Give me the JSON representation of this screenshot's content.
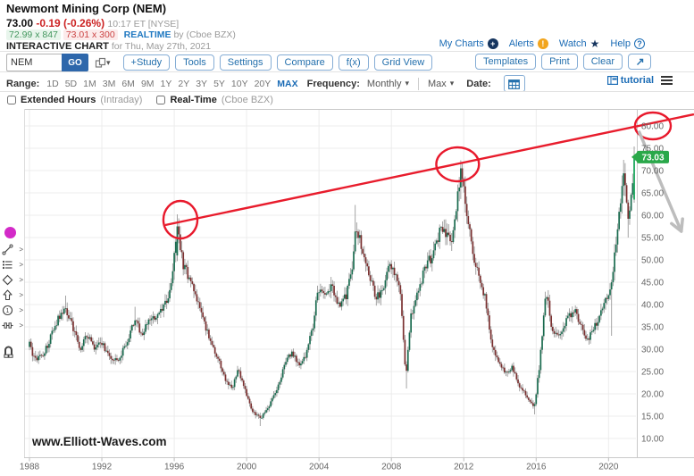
{
  "header": {
    "title": "Newmont Mining Corp (NEM)",
    "price": "73.00",
    "change": "-0.19 (-0.26%)",
    "time": "10:17 ET [NYSE]",
    "bid": "72.99 x 847",
    "ask": "73.01 x 300",
    "realtime_label": "REALTIME",
    "realtime_by": "by (Cboe BZX)",
    "chart_label": "INTERACTIVE CHART",
    "chart_date": "for Thu, May 27th, 2021",
    "links": {
      "my_charts": "My Charts",
      "alerts": "Alerts",
      "watch": "Watch",
      "help": "Help"
    }
  },
  "toolbar": {
    "symbol_value": "NEM",
    "go_label": "GO",
    "buttons": [
      "+Study",
      "Tools",
      "Settings",
      "Compare",
      "f(x)",
      "Grid View"
    ],
    "right_buttons": [
      "Templates",
      "Print",
      "Clear"
    ]
  },
  "range_bar": {
    "range_label": "Range:",
    "ranges": [
      "1D",
      "5D",
      "1M",
      "3M",
      "6M",
      "9M",
      "1Y",
      "2Y",
      "3Y",
      "5Y",
      "10Y",
      "20Y"
    ],
    "active_range": "MAX",
    "frequency_label": "Frequency:",
    "frequency_value": "Monthly",
    "max_value": "Max",
    "date_label": "Date:",
    "tutorial": "tutorial"
  },
  "options_bar": {
    "extended_hours": "Extended Hours",
    "extended_hours_suffix": "(Intraday)",
    "real_time": "Real-Time",
    "real_time_suffix": "(Cboe BZX)"
  },
  "watermark": "www.Elliott-Waves.com",
  "price_badge": "73.03",
  "colors": {
    "accent_blue": "#1a6bb5",
    "go_bg": "#2e67ab",
    "up_candle": "#1a6b4f",
    "down_candle": "#7a3030",
    "last_candle": "#12a355",
    "wick": "#9a9a9a",
    "grid": "#ececec",
    "axis": "#c9c9c9",
    "tick_text": "#666666",
    "trendline": "#e81c2c",
    "annotation_circle": "#e8192c",
    "arrow": "#bdbdbd",
    "badge_bg": "#2aa84a",
    "magenta_dot": "#d32ac8"
  },
  "chart_data": {
    "type": "candlestick",
    "symbol": "NEM",
    "frequency": "Monthly",
    "x_ticks": [
      1988,
      1992,
      1996,
      2000,
      2004,
      2008,
      2012,
      2016,
      2020
    ],
    "y_ticks": [
      80,
      75,
      70,
      65,
      60,
      55,
      50,
      45,
      40,
      35,
      30,
      25,
      20,
      15,
      10
    ],
    "ylim": [
      5.8,
      83.8
    ],
    "x_range": [
      1988,
      2024.7
    ],
    "last_price": 73.03,
    "price_anchors": [
      [
        1988.0,
        31
      ],
      [
        1988.3,
        27.5
      ],
      [
        1988.8,
        29
      ],
      [
        1989.2,
        33
      ],
      [
        1989.6,
        37
      ],
      [
        1990.0,
        39
      ],
      [
        1990.4,
        35
      ],
      [
        1990.8,
        30
      ],
      [
        1991.2,
        33.5
      ],
      [
        1991.6,
        30
      ],
      [
        1992.0,
        31.5
      ],
      [
        1992.4,
        28.5
      ],
      [
        1992.9,
        27
      ],
      [
        1993.4,
        32
      ],
      [
        1993.8,
        36.5
      ],
      [
        1994.2,
        33.5
      ],
      [
        1994.6,
        36.5
      ],
      [
        1995.0,
        37
      ],
      [
        1995.4,
        39
      ],
      [
        1995.8,
        43.5
      ],
      [
        1996.17,
        57.5
      ],
      [
        1996.5,
        49
      ],
      [
        1997.0,
        44.5
      ],
      [
        1997.4,
        39
      ],
      [
        1997.9,
        33
      ],
      [
        1998.3,
        29
      ],
      [
        1998.8,
        23.5
      ],
      [
        1999.2,
        21
      ],
      [
        1999.5,
        25.5
      ],
      [
        1999.9,
        21
      ],
      [
        2000.3,
        16
      ],
      [
        2000.75,
        14.5
      ],
      [
        2001.2,
        17
      ],
      [
        2001.7,
        21
      ],
      [
        2002.1,
        26.5
      ],
      [
        2002.5,
        29.5
      ],
      [
        2002.9,
        26
      ],
      [
        2003.3,
        29
      ],
      [
        2003.7,
        36
      ],
      [
        2003.95,
        44
      ],
      [
        2004.3,
        41.5
      ],
      [
        2004.7,
        44.5
      ],
      [
        2005.1,
        39.5
      ],
      [
        2005.5,
        42
      ],
      [
        2005.9,
        50
      ],
      [
        2006.04,
        58
      ],
      [
        2006.4,
        52
      ],
      [
        2006.8,
        45.5
      ],
      [
        2007.2,
        41.5
      ],
      [
        2007.6,
        44
      ],
      [
        2007.9,
        50
      ],
      [
        2008.2,
        47
      ],
      [
        2008.5,
        42
      ],
      [
        2008.8,
        24
      ],
      [
        2009.1,
        38
      ],
      [
        2009.5,
        43
      ],
      [
        2009.9,
        49
      ],
      [
        2010.3,
        51
      ],
      [
        2010.7,
        57
      ],
      [
        2011.0,
        56
      ],
      [
        2011.3,
        54
      ],
      [
        2011.6,
        62
      ],
      [
        2011.85,
        70
      ],
      [
        2012.2,
        60
      ],
      [
        2012.6,
        49
      ],
      [
        2012.9,
        46
      ],
      [
        2013.2,
        41
      ],
      [
        2013.5,
        32
      ],
      [
        2013.9,
        27
      ],
      [
        2014.3,
        24.5
      ],
      [
        2014.7,
        26
      ],
      [
        2015.1,
        21.5
      ],
      [
        2015.5,
        19.5
      ],
      [
        2015.9,
        17
      ],
      [
        2016.2,
        27
      ],
      [
        2016.55,
        43.5
      ],
      [
        2016.9,
        33.5
      ],
      [
        2017.3,
        33
      ],
      [
        2017.7,
        36.5
      ],
      [
        2018.1,
        39
      ],
      [
        2018.5,
        35
      ],
      [
        2018.8,
        31.5
      ],
      [
        2019.1,
        34
      ],
      [
        2019.5,
        37.5
      ],
      [
        2019.9,
        42
      ],
      [
        2020.2,
        45
      ],
      [
        2020.5,
        58
      ],
      [
        2020.85,
        70
      ],
      [
        2021.08,
        58
      ],
      [
        2021.25,
        63.5
      ],
      [
        2021.42,
        73.03
      ]
    ],
    "key_points": [
      {
        "t": 1990.0,
        "h": 42
      },
      {
        "t": 1993.8,
        "h": 39.5
      },
      {
        "t": 1996.17,
        "o": 51,
        "c": 57.5,
        "h": 60.2
      },
      {
        "t": 2000.75,
        "l": 12.8
      },
      {
        "t": 2006.04,
        "h": 62.3
      },
      {
        "t": 2008.8,
        "l": 21.2
      },
      {
        "t": 2011.85,
        "h": 72.3,
        "c": 70.5
      },
      {
        "t": 2015.9,
        "l": 15.4
      },
      {
        "t": 2020.2,
        "l": 33
      },
      {
        "t": 2020.85,
        "h": 72.4
      },
      {
        "t": 2021.08,
        "l": 55
      },
      {
        "t": 2021.42,
        "o": 63.5,
        "h": 75.4,
        "l": 62.8,
        "c": 73.03
      }
    ],
    "annotations": {
      "trendline": {
        "x1_year": 1995.5,
        "p1": 57.8,
        "x2_year": 2024.72,
        "p2": 82.6
      },
      "circles": [
        {
          "year": 1996.34,
          "price": 59.0,
          "rx_years": 0.94,
          "ry_price": 4.2
        },
        {
          "year": 2011.66,
          "price": 71.4,
          "rx_years": 1.18,
          "ry_price": 3.8
        },
        {
          "year": 2022.45,
          "price": 80.0,
          "rx_years": 0.99,
          "ry_price": 3.0
        }
      ],
      "arrow": {
        "x1_year": 2021.7,
        "p1": 78.6,
        "x2_year": 2024.02,
        "p2": 56.4
      }
    }
  }
}
